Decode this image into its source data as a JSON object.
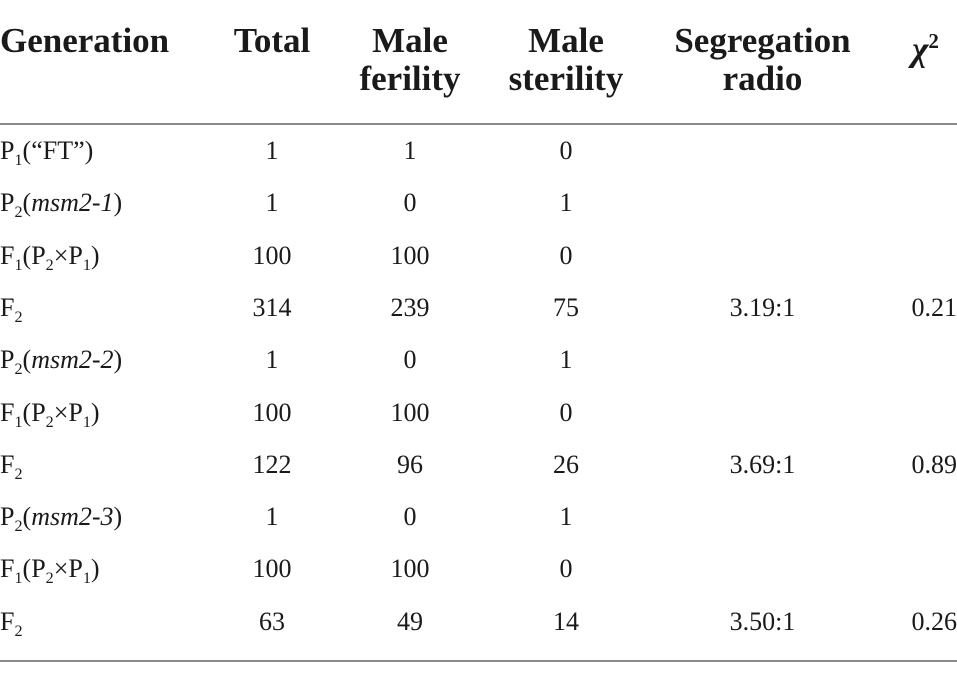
{
  "headers": {
    "generation": "Generation",
    "total": "Total",
    "male_fertility_l1": "Male",
    "male_fertility_l2": "ferility",
    "male_sterility_l1": "Male",
    "male_sterility_l2": "sterility",
    "segregation_l1": "Segregation",
    "segregation_l2": "radio",
    "chi_symbol": "χ",
    "chi_exp": "2"
  },
  "rows": [
    {
      "generation": "P1(“FT”)",
      "total": "1",
      "male_fertility": "1",
      "male_sterility": "0",
      "segregation_ratio": "",
      "chi2": ""
    },
    {
      "generation": "P2(msm2-1)",
      "total": "1",
      "male_fertility": "0",
      "male_sterility": "1",
      "segregation_ratio": "",
      "chi2": ""
    },
    {
      "generation": "F1(P2×P1)",
      "total": "100",
      "male_fertility": "100",
      "male_sterility": "0",
      "segregation_ratio": "",
      "chi2": ""
    },
    {
      "generation": "F2",
      "total": "314",
      "male_fertility": "239",
      "male_sterility": "75",
      "segregation_ratio": "3.19:1",
      "chi2": "0.21"
    },
    {
      "generation": "P2(msm2-2)",
      "total": "1",
      "male_fertility": "0",
      "male_sterility": "1",
      "segregation_ratio": "",
      "chi2": ""
    },
    {
      "generation": "F1(P2×P1)",
      "total": "100",
      "male_fertility": "100",
      "male_sterility": "0",
      "segregation_ratio": "",
      "chi2": ""
    },
    {
      "generation": "F2",
      "total": "122",
      "male_fertility": "96",
      "male_sterility": "26",
      "segregation_ratio": "3.69:1",
      "chi2": "0.89"
    },
    {
      "generation": "P2(msm2-3)",
      "total": "1",
      "male_fertility": "0",
      "male_sterility": "1",
      "segregation_ratio": "",
      "chi2": ""
    },
    {
      "generation": "F1(P2×P1)",
      "total": "100",
      "male_fertility": "100",
      "male_sterility": "0",
      "segregation_ratio": "",
      "chi2": ""
    },
    {
      "generation": "F2",
      "total": "63",
      "male_fertility": "49",
      "male_sterility": "14",
      "segregation_ratio": "3.50:1",
      "chi2": "0.26"
    }
  ],
  "generation_parts": [
    [
      {
        "t": "P"
      },
      {
        "t": "1",
        "sub": true
      },
      {
        "t": "(“FT”)"
      }
    ],
    [
      {
        "t": "P"
      },
      {
        "t": "2",
        "sub": true
      },
      {
        "t": "("
      },
      {
        "t": "msm2-1",
        "it": true
      },
      {
        "t": ")"
      }
    ],
    [
      {
        "t": "F"
      },
      {
        "t": "1",
        "sub": true
      },
      {
        "t": "(P"
      },
      {
        "t": "2",
        "sub": true
      },
      {
        "t": "×P"
      },
      {
        "t": "1",
        "sub": true
      },
      {
        "t": ")"
      }
    ],
    [
      {
        "t": "F"
      },
      {
        "t": "2",
        "sub": true
      }
    ],
    [
      {
        "t": "P"
      },
      {
        "t": "2",
        "sub": true
      },
      {
        "t": "("
      },
      {
        "t": "msm2-2",
        "it": true
      },
      {
        "t": ")"
      }
    ],
    [
      {
        "t": "F"
      },
      {
        "t": "1",
        "sub": true
      },
      {
        "t": "(P"
      },
      {
        "t": "2",
        "sub": true
      },
      {
        "t": "×P"
      },
      {
        "t": "1",
        "sub": true
      },
      {
        "t": ")"
      }
    ],
    [
      {
        "t": "F"
      },
      {
        "t": "2",
        "sub": true
      }
    ],
    [
      {
        "t": "P"
      },
      {
        "t": "2",
        "sub": true
      },
      {
        "t": "("
      },
      {
        "t": "msm2-3",
        "it": true
      },
      {
        "t": ")"
      }
    ],
    [
      {
        "t": "F"
      },
      {
        "t": "1",
        "sub": true
      },
      {
        "t": "(P"
      },
      {
        "t": "2",
        "sub": true
      },
      {
        "t": "×P"
      },
      {
        "t": "1",
        "sub": true
      },
      {
        "t": ")"
      }
    ],
    [
      {
        "t": "F"
      },
      {
        "t": "2",
        "sub": true
      }
    ]
  ]
}
